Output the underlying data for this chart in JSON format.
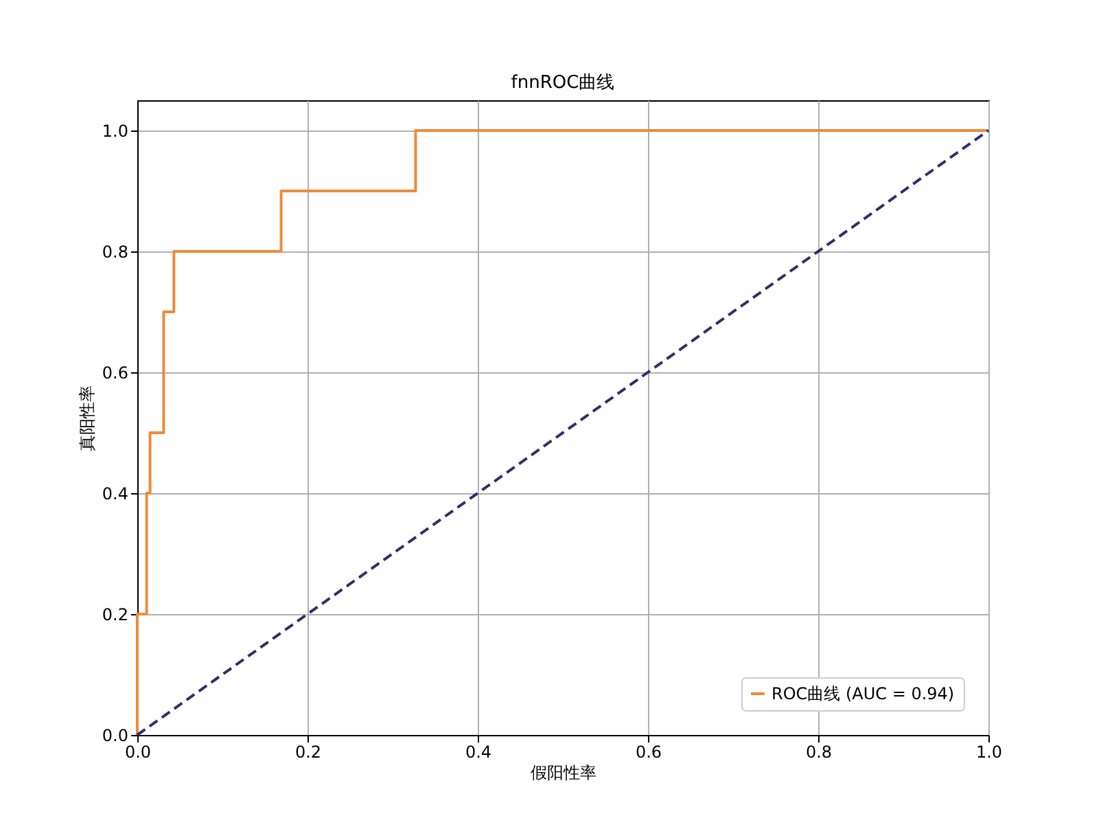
{
  "chart_data": {
    "type": "line",
    "title": "fnnROC曲线",
    "xlabel": "假阳性率",
    "ylabel": "真阳性率",
    "xlim": [
      0,
      1
    ],
    "ylim": [
      0,
      1.05
    ],
    "xticks": [
      {
        "value": 0,
        "label": "0.0"
      },
      0.2,
      0.4,
      0.6,
      0.8,
      {
        "value": 1,
        "label": "1.0"
      }
    ],
    "yticks": [
      {
        "value": 0,
        "label": "0.0"
      },
      0.2,
      0.4,
      0.6,
      0.8,
      {
        "value": 1,
        "label": "1.0"
      }
    ],
    "grid": true,
    "legend": "bottom right",
    "marker": "none",
    "series": [
      {
        "name": "ROC曲线 (AUC = 0.94)",
        "color": "#ee8a3a",
        "line_style": "solid",
        "x": [
          0,
          0,
          0.011,
          0.011,
          0.015,
          0.015,
          0.031,
          0.031,
          0.043,
          0.043,
          0.169,
          0.169,
          0.327,
          0.327,
          1
        ],
        "values": [
          0,
          0.2,
          0.2,
          0.4,
          0.4,
          0.5,
          0.5,
          0.7,
          0.7,
          0.8,
          0.8,
          0.9,
          0.9,
          1,
          1
        ]
      },
      {
        "color": "#2e2f6b",
        "line_style": "dashed",
        "x": [
          0,
          1
        ],
        "values": [
          0,
          1
        ]
      }
    ]
  }
}
